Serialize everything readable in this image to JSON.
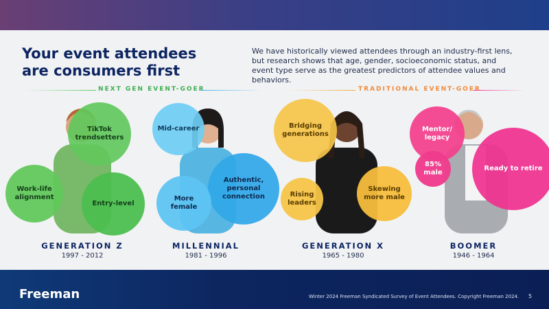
{
  "header": {
    "title": "Your event attendees are consumers first",
    "intro": "We have historically viewed attendees through an industry-first lens, but research shows that age, gender, socioeconomic status, and event type serve as the greatest predictors of attendee values and behaviors."
  },
  "sections": [
    {
      "label": "NEXT GEN EVENT-GOER"
    },
    {
      "label": "TRADITIONAL EVENT-GOER"
    }
  ],
  "generations": [
    {
      "name": "GENERATION Z",
      "years": "1997 - 2012",
      "traits": [
        "TikTok trendsetters",
        "Work-life alignment",
        "Entry-level"
      ]
    },
    {
      "name": "MILLENNIAL",
      "years": "1981 - 1996",
      "traits": [
        "Mid-career",
        "Authentic, personal connection",
        "More female"
      ]
    },
    {
      "name": "GENERATION X",
      "years": "1965 - 1980",
      "traits": [
        "Bridging generations",
        "Rising leaders",
        "Skewing more male"
      ]
    },
    {
      "name": "BOOMER",
      "years": "1946 - 1964",
      "traits": [
        "Mentor/ legacy",
        "85% male",
        "Ready to retire"
      ]
    }
  ],
  "footer": {
    "logo": "Freeman",
    "note": "Winter 2024 Freeman Syndicated Survey of Event Attendees. Copyright Freeman 2024.",
    "page": "5"
  }
}
